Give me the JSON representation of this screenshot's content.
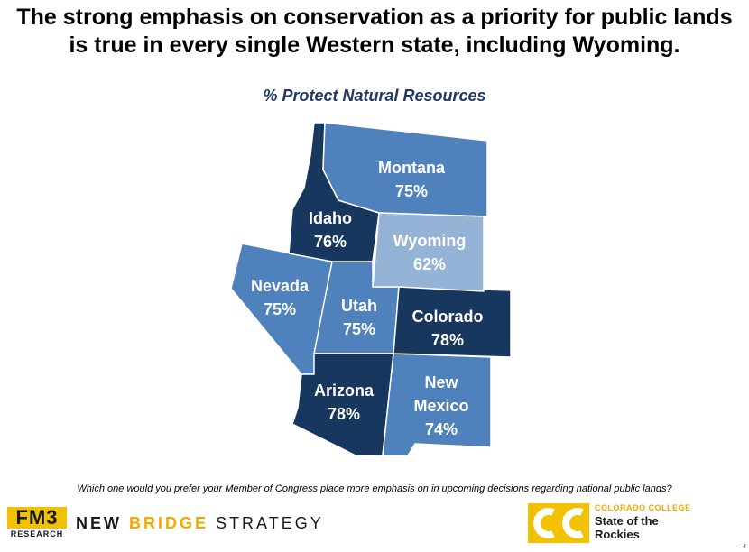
{
  "title_line1": "The strong emphasis on conservation as a priority for public lands",
  "title_line2": "is true in every single Western state, including Wyoming.",
  "subtitle": "% Protect Natural Resources",
  "states": {
    "montana": {
      "name": "Montana",
      "value": "75%",
      "color": "#4f81bd"
    },
    "idaho": {
      "name": "Idaho",
      "value": "76%",
      "color": "#17375e"
    },
    "wyoming": {
      "name": "Wyoming",
      "value": "62%",
      "color": "#95b3d7"
    },
    "nevada": {
      "name": "Nevada",
      "value": "75%",
      "color": "#4f81bd"
    },
    "utah": {
      "name": "Utah",
      "value": "75%",
      "color": "#4f81bd"
    },
    "colorado": {
      "name": "Colorado",
      "value": "78%",
      "color": "#17375e"
    },
    "arizona": {
      "name": "Arizona",
      "value": "78%",
      "color": "#17375e"
    },
    "new_mexico": {
      "name_line1": "New",
      "name_line2": "Mexico",
      "value": "74%",
      "color": "#4f81bd"
    }
  },
  "question": "Which one would you prefer your Member of Congress place more emphasis on in upcoming decisions regarding national public lands?",
  "logos": {
    "fm3_top": "FM3",
    "fm3_bottom": "RESEARCH",
    "nbs_part1": "NEW",
    "nbs_part2": "BRIDGE",
    "nbs_part3": "STRATEGY",
    "cc_mark": "CC",
    "cc_college": "COLORADO COLLEGE",
    "cc_name": "State of the Rockies",
    "accent": "#f2c200"
  },
  "page_number": "4"
}
